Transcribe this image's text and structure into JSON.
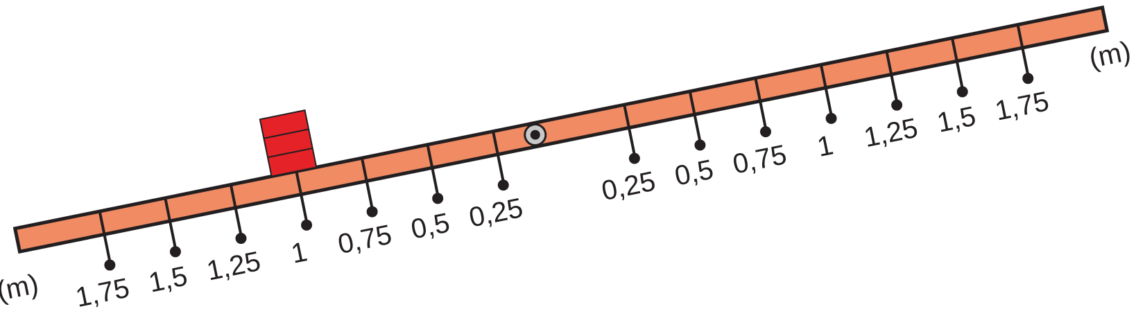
{
  "diagram": {
    "unit_label": "(m)",
    "pivot": "pivot-icon",
    "weight": "block-icon",
    "left_ticks": [
      "0,25",
      "0,5",
      "0,75",
      "1",
      "1,25",
      "1,5",
      "1,75"
    ],
    "right_ticks": [
      "0,25",
      "0,5",
      "0,75",
      "1",
      "1,25",
      "1,5",
      "1,75"
    ],
    "colors": {
      "beam": "#f08b64",
      "outline": "#231f20",
      "block": "#e42227",
      "pivot": "#c8c8c8"
    }
  }
}
